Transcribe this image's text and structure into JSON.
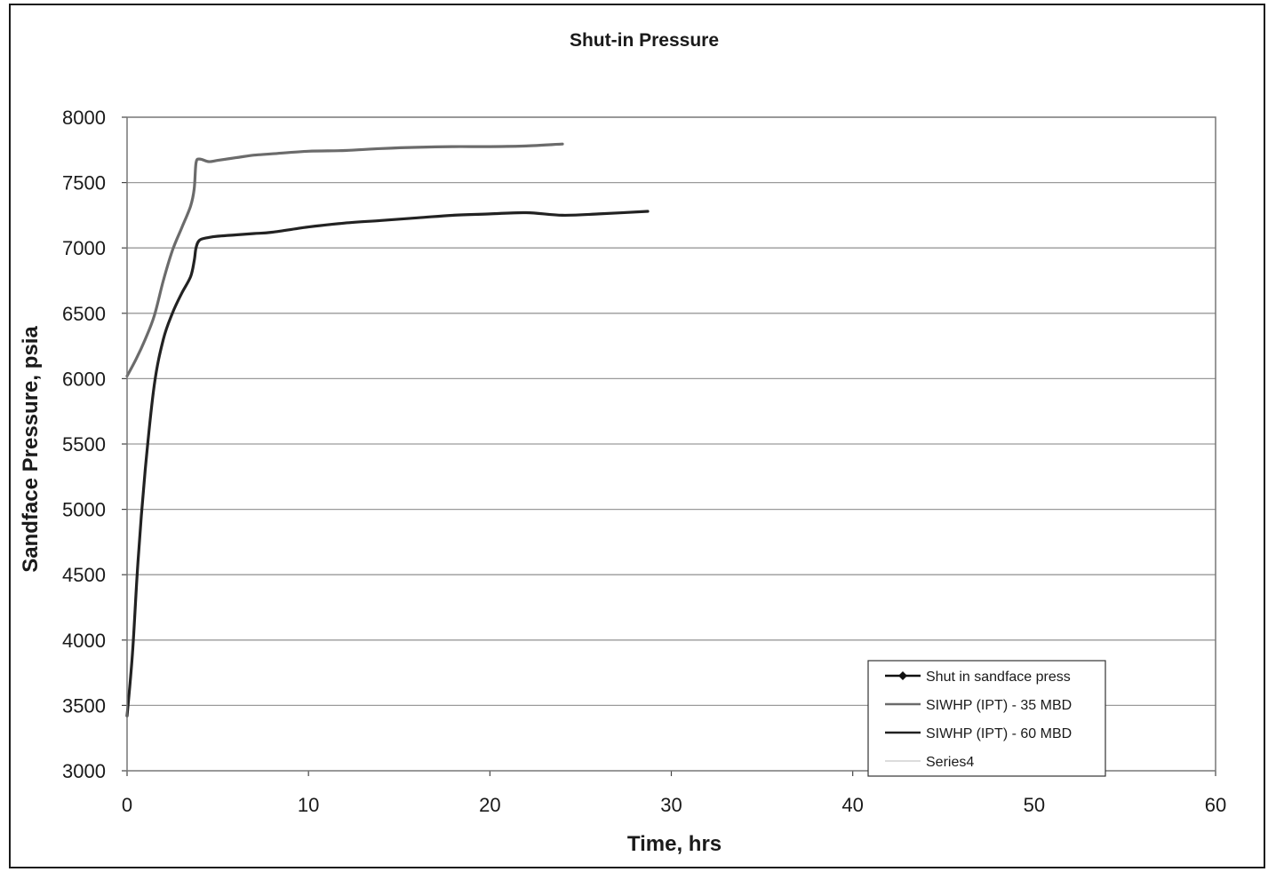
{
  "chart_data": {
    "type": "line",
    "title": "Shut-in Pressure",
    "xlabel": "Time, hrs",
    "ylabel": "Sandface Pressure, psia",
    "xlim": [
      0,
      60
    ],
    "ylim": [
      3000,
      8000
    ],
    "xticks": [
      0,
      10,
      20,
      30,
      40,
      50,
      60
    ],
    "yticks": [
      3000,
      3500,
      4000,
      4500,
      5000,
      5500,
      6000,
      6500,
      7000,
      7500,
      8000
    ],
    "grid": "horizontal",
    "legend_position": "bottom-right",
    "legend": [
      "Shut in sandface press",
      "SIWHP (IPT) - 35 MBD",
      "SIWHP (IPT) - 60 MBD",
      "Series4"
    ],
    "series": [
      {
        "name": "Shut in sandface press",
        "color": "#111111",
        "marker": "diamond",
        "x": [],
        "y": []
      },
      {
        "name": "SIWHP (IPT) - 35 MBD",
        "color": "#6b6b6b",
        "x": [
          0,
          0.5,
          1,
          1.5,
          2,
          2.5,
          3,
          3.5,
          3.7,
          3.8,
          4,
          4.5,
          5,
          6,
          7,
          8,
          10,
          12,
          14,
          16,
          18,
          20,
          22,
          24
        ],
        "y": [
          6020,
          6150,
          6300,
          6480,
          6750,
          6980,
          7150,
          7320,
          7450,
          7650,
          7680,
          7660,
          7670,
          7690,
          7710,
          7720,
          7740,
          7745,
          7760,
          7770,
          7775,
          7775,
          7780,
          7795
        ]
      },
      {
        "name": "SIWHP (IPT) - 60 MBD",
        "color": "#222222",
        "x": [
          0,
          0.3,
          0.6,
          1,
          1.5,
          2,
          2.5,
          3,
          3.5,
          3.7,
          3.8,
          4,
          4.5,
          5,
          6,
          7,
          8,
          10,
          12,
          14,
          16,
          18,
          20,
          22,
          24,
          26,
          28.7
        ],
        "y": [
          3420,
          3900,
          4600,
          5300,
          5950,
          6300,
          6500,
          6650,
          6780,
          6900,
          7000,
          7060,
          7080,
          7090,
          7100,
          7110,
          7120,
          7160,
          7190,
          7210,
          7230,
          7250,
          7260,
          7270,
          7250,
          7260,
          7280
        ]
      },
      {
        "name": "Series4",
        "color": "#d0d0d0",
        "x": [],
        "y": []
      }
    ]
  }
}
